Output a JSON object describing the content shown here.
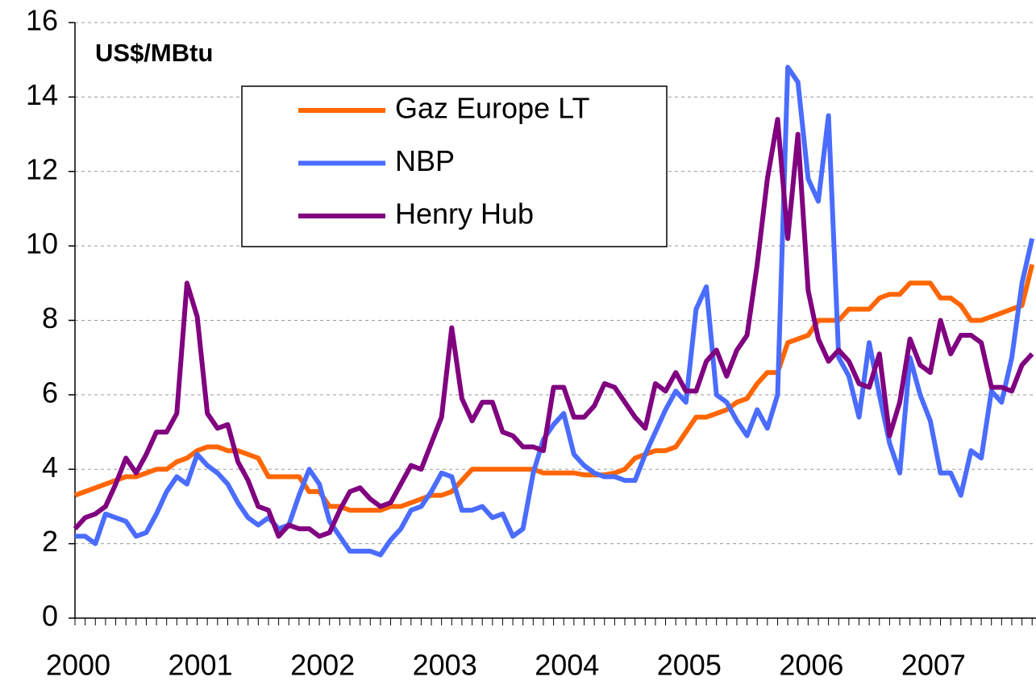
{
  "chart_data": {
    "type": "line",
    "title": "US$/MBtu",
    "categories": [
      "2000",
      null,
      null,
      null,
      null,
      null,
      null,
      null,
      null,
      null,
      null,
      null,
      "2001",
      null,
      null,
      null,
      null,
      null,
      null,
      null,
      null,
      null,
      null,
      null,
      "2002",
      null,
      null,
      null,
      null,
      null,
      null,
      null,
      null,
      null,
      null,
      null,
      "2003",
      null,
      null,
      null,
      null,
      null,
      null,
      null,
      null,
      null,
      null,
      null,
      "2004",
      null,
      null,
      null,
      null,
      null,
      null,
      null,
      null,
      null,
      null,
      null,
      "2005",
      null,
      null,
      null,
      null,
      null,
      null,
      null,
      null,
      null,
      null,
      null,
      "2006",
      null,
      null,
      null,
      null,
      null,
      null,
      null,
      null,
      null,
      null,
      null,
      "2007",
      null,
      null,
      null,
      null,
      null,
      null,
      null,
      null,
      null,
      null
    ],
    "series": [
      {
        "name": "Gaz Europe LT",
        "color": "#ff6600",
        "values": [
          3.3,
          3.4,
          3.5,
          3.6,
          3.7,
          3.8,
          3.8,
          3.9,
          4.0,
          4.0,
          4.2,
          4.3,
          4.5,
          4.6,
          4.6,
          4.5,
          4.5,
          4.4,
          4.3,
          3.8,
          3.8,
          3.8,
          3.8,
          3.4,
          3.4,
          3.0,
          3.0,
          2.9,
          2.9,
          2.9,
          2.9,
          3.0,
          3.0,
          3.1,
          3.2,
          3.3,
          3.3,
          3.4,
          3.7,
          4.0,
          4.0,
          4.0,
          4.0,
          4.0,
          4.0,
          4.0,
          3.9,
          3.9,
          3.9,
          3.9,
          3.85,
          3.85,
          3.85,
          3.9,
          4.0,
          4.3,
          4.4,
          4.5,
          4.5,
          4.6,
          5.0,
          5.4,
          5.4,
          5.5,
          5.6,
          5.8,
          5.9,
          6.3,
          6.6,
          6.6,
          7.4,
          7.5,
          7.6,
          8.0,
          8.0,
          8.0,
          8.3,
          8.3,
          8.3,
          8.6,
          8.7,
          8.7,
          9.0,
          9.0,
          9.0,
          8.6,
          8.6,
          8.4,
          8.0,
          8.0,
          8.1,
          8.2,
          8.3,
          8.4,
          9.5
        ]
      },
      {
        "name": "NBP",
        "color": "#4a6cff",
        "values": [
          2.2,
          2.2,
          2.0,
          2.8,
          2.7,
          2.6,
          2.2,
          2.3,
          2.8,
          3.4,
          3.8,
          3.6,
          4.4,
          4.1,
          3.9,
          3.6,
          3.1,
          2.7,
          2.5,
          2.7,
          2.4,
          2.5,
          3.3,
          4.0,
          3.6,
          2.6,
          2.2,
          1.8,
          1.8,
          1.8,
          1.7,
          2.1,
          2.4,
          2.9,
          3.0,
          3.4,
          3.9,
          3.8,
          2.9,
          2.9,
          3.0,
          2.7,
          2.8,
          2.2,
          2.4,
          3.9,
          4.8,
          5.2,
          5.5,
          4.4,
          4.1,
          3.9,
          3.8,
          3.8,
          3.7,
          3.7,
          4.4,
          5.0,
          5.6,
          6.1,
          5.8,
          8.3,
          8.9,
          6.0,
          5.8,
          5.3,
          4.9,
          5.6,
          5.1,
          6.0,
          14.8,
          14.4,
          11.8,
          11.2,
          13.5,
          7.0,
          6.5,
          5.4,
          7.4,
          6.0,
          4.7,
          3.9,
          7.0,
          6.0,
          5.3,
          3.9,
          3.9,
          3.3,
          4.5,
          4.3,
          6.1,
          5.8,
          7.0,
          9.0,
          10.2
        ]
      },
      {
        "name": "Henry Hub",
        "color": "#800080",
        "values": [
          2.4,
          2.7,
          2.8,
          3.0,
          3.6,
          4.3,
          3.9,
          4.4,
          5.0,
          5.0,
          5.5,
          9.0,
          8.1,
          5.5,
          5.1,
          5.2,
          4.2,
          3.7,
          3.0,
          2.9,
          2.2,
          2.5,
          2.4,
          2.4,
          2.2,
          2.3,
          2.9,
          3.4,
          3.5,
          3.2,
          3.0,
          3.1,
          3.6,
          4.1,
          4.0,
          4.7,
          5.4,
          7.8,
          5.9,
          5.3,
          5.8,
          5.8,
          5.0,
          4.9,
          4.6,
          4.6,
          4.5,
          6.2,
          6.2,
          5.4,
          5.4,
          5.7,
          6.3,
          6.2,
          5.8,
          5.4,
          5.1,
          6.3,
          6.1,
          6.6,
          6.1,
          6.1,
          6.9,
          7.2,
          6.5,
          7.2,
          7.6,
          9.5,
          11.8,
          13.4,
          10.2,
          13.0,
          8.8,
          7.5,
          6.9,
          7.2,
          6.9,
          6.3,
          6.2,
          7.1,
          4.9,
          5.8,
          7.5,
          6.8,
          6.6,
          8.0,
          7.1,
          7.6,
          7.6,
          7.4,
          6.2,
          6.2,
          6.1,
          6.8,
          7.1
        ]
      }
    ],
    "ylim": [
      0,
      16
    ],
    "yticks": [
      0,
      2,
      4,
      6,
      8,
      10,
      12,
      14,
      16
    ],
    "grid": true
  }
}
